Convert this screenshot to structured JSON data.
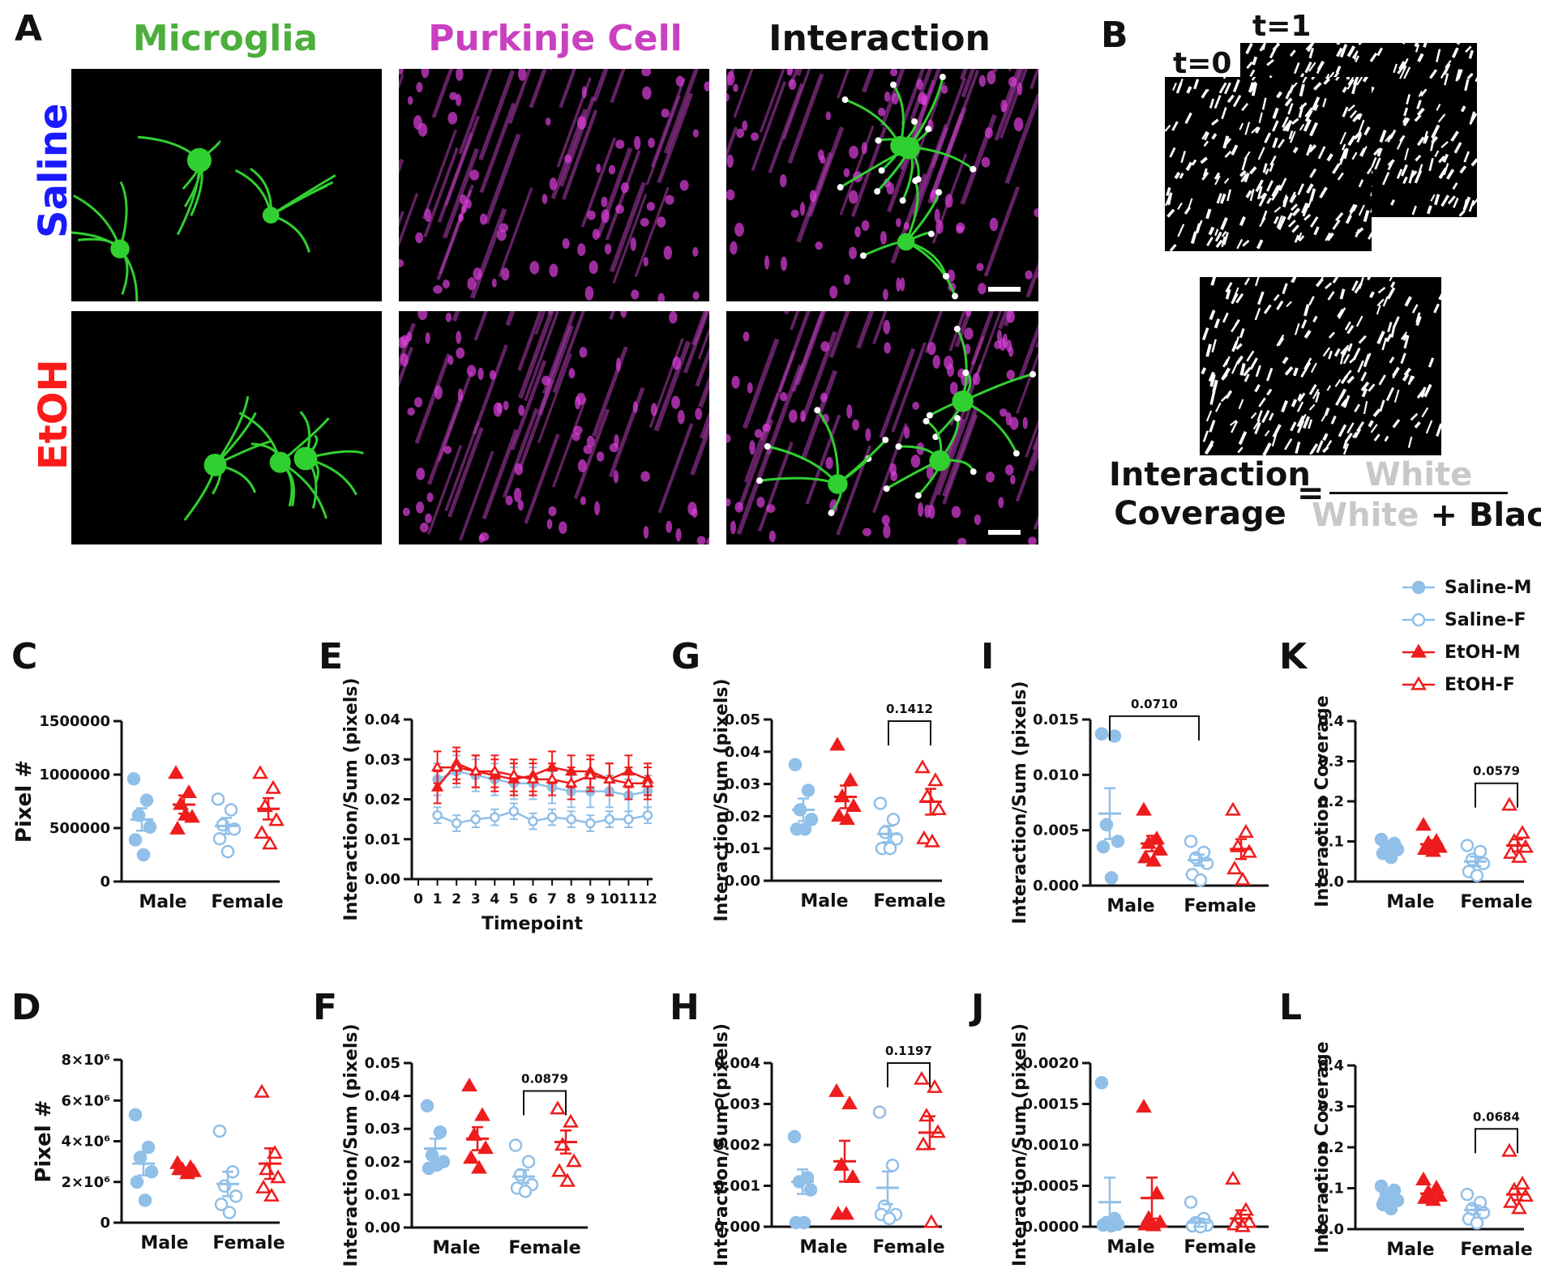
{
  "panel_labels": {
    "A": "A",
    "B": "B",
    "C": "C",
    "D": "D",
    "E": "E",
    "F": "F",
    "G": "G",
    "H": "H",
    "I": "I",
    "J": "J",
    "K": "K",
    "L": "L"
  },
  "imaging": {
    "column_titles": [
      "Microglia",
      "Purkinje Cell",
      "Interaction"
    ],
    "column_colors": [
      "#4caf3c",
      "#c940c0",
      "#111111"
    ],
    "row_labels": [
      "Saline",
      "EtOH"
    ],
    "row_colors": [
      "#1a1aff",
      "#ff1a1a"
    ]
  },
  "panel_b": {
    "t0": "t=0",
    "t1": "t=1",
    "formula": {
      "lhs_line1": "Interaction",
      "lhs_line2": "Coverage",
      "eq": "=",
      "num": "White",
      "den_white": "White",
      "den_plus": "+ Black"
    },
    "grey": "#c8c8c8"
  },
  "legend": [
    {
      "label": "Saline-M",
      "color": "#90bfe8",
      "marker": "circle",
      "filled": true
    },
    {
      "label": "Saline-F",
      "color": "#90bfe8",
      "marker": "circle",
      "filled": false
    },
    {
      "label": "EtOH-M",
      "color": "#ee1c1c",
      "marker": "triangle",
      "filled": true
    },
    {
      "label": "EtOH-F",
      "color": "#ee1c1c",
      "marker": "triangle",
      "filled": false
    }
  ],
  "chart_data": [
    {
      "id": "C",
      "type": "scatter",
      "ylabel": "Pixel #",
      "categories": [
        "Male",
        "Female"
      ],
      "ylim": [
        0,
        1500000
      ],
      "yticks": [
        "0",
        "500000",
        "1000000",
        "1500000"
      ],
      "ytick_values": [
        0,
        500000,
        1000000,
        1500000
      ],
      "groups": [
        {
          "series": "Saline-M",
          "cat": 0,
          "values": [
            960000,
            760000,
            620000,
            510000,
            390000,
            250000
          ],
          "mean": 580000,
          "sem": 105000
        },
        {
          "series": "EtOH-M",
          "cat": 0,
          "values": [
            1010000,
            830000,
            720000,
            600000,
            490000,
            620000
          ],
          "mean": 720000,
          "sem": 85000
        },
        {
          "series": "Saline-F",
          "cat": 1,
          "values": [
            770000,
            670000,
            530000,
            490000,
            400000,
            280000
          ],
          "mean": 520000,
          "sem": 75000
        },
        {
          "series": "EtOH-F",
          "cat": 1,
          "values": [
            1010000,
            870000,
            700000,
            570000,
            450000,
            350000
          ],
          "mean": 680000,
          "sem": 100000
        }
      ]
    },
    {
      "id": "D",
      "type": "scatter",
      "ylabel": "Pixel #",
      "categories": [
        "Male",
        "Female"
      ],
      "ylim": [
        0,
        8000000
      ],
      "yticks": [
        "0",
        "2×10⁶",
        "4×10⁶",
        "6×10⁶",
        "8×10⁶"
      ],
      "ytick_values": [
        0,
        2000000,
        4000000,
        6000000,
        8000000
      ],
      "groups": [
        {
          "series": "Saline-M",
          "cat": 0,
          "values": [
            5300000,
            3700000,
            3200000,
            2500000,
            2000000,
            1100000
          ],
          "mean": 2900000,
          "sem": 580000
        },
        {
          "series": "EtOH-M",
          "cat": 0,
          "values": [
            2900000,
            2700000,
            2600000,
            2500000,
            2600000,
            2400000
          ],
          "mean": 2600000,
          "sem": 100000
        },
        {
          "series": "Saline-F",
          "cat": 1,
          "values": [
            4500000,
            2500000,
            1800000,
            1300000,
            900000,
            500000
          ],
          "mean": 1900000,
          "sem": 600000
        },
        {
          "series": "EtOH-F",
          "cat": 1,
          "values": [
            6400000,
            3400000,
            2600000,
            2200000,
            1700000,
            1300000
          ],
          "mean": 2900000,
          "sem": 750000
        }
      ]
    },
    {
      "id": "E",
      "type": "line",
      "ylabel": "Interaction/Sum  (pixels)",
      "xlabel": "Timepoint",
      "ylim": [
        0,
        0.04
      ],
      "yticks": [
        "0.00",
        "0.01",
        "0.02",
        "0.03",
        "0.04"
      ],
      "ytick_values": [
        0,
        0.01,
        0.02,
        0.03,
        0.04
      ],
      "xticks": [
        "0",
        "1",
        "2",
        "3",
        "4",
        "5",
        "6",
        "7",
        "8",
        "9",
        "10",
        "11",
        "12"
      ],
      "x": [
        1,
        2,
        3,
        4,
        5,
        6,
        7,
        8,
        9,
        10,
        11,
        12
      ],
      "series": [
        {
          "name": "Saline-M",
          "values": [
            0.025,
            0.027,
            0.026,
            0.025,
            0.024,
            0.024,
            0.023,
            0.022,
            0.022,
            0.022,
            0.021,
            0.022
          ],
          "err": 0.004
        },
        {
          "name": "Saline-F",
          "values": [
            0.016,
            0.014,
            0.015,
            0.0155,
            0.017,
            0.0145,
            0.0155,
            0.015,
            0.014,
            0.015,
            0.015,
            0.016
          ],
          "err": 0.002
        },
        {
          "name": "EtOH-M",
          "values": [
            0.023,
            0.029,
            0.027,
            0.026,
            0.025,
            0.026,
            0.028,
            0.027,
            0.027,
            0.025,
            0.027,
            0.025
          ],
          "err": 0.004
        },
        {
          "name": "EtOH-F",
          "values": [
            0.028,
            0.028,
            0.027,
            0.027,
            0.026,
            0.025,
            0.025,
            0.024,
            0.026,
            0.025,
            0.024,
            0.024
          ],
          "err": 0.004
        }
      ]
    },
    {
      "id": "F",
      "type": "scatter",
      "ylabel": "Interaction/Sum  (pixels)",
      "categories": [
        "Male",
        "Female"
      ],
      "ylim": [
        0,
        0.05
      ],
      "yticks": [
        "0.00",
        "0.01",
        "0.02",
        "0.03",
        "0.04",
        "0.05"
      ],
      "ytick_values": [
        0,
        0.01,
        0.02,
        0.03,
        0.04,
        0.05
      ],
      "annotation": {
        "text": "0.0879",
        "cats": [
          1,
          1
        ],
        "y": 0.0415
      },
      "groups": [
        {
          "series": "Saline-M",
          "cat": 0,
          "values": [
            0.037,
            0.029,
            0.022,
            0.02,
            0.018,
            0.019
          ],
          "mean": 0.024,
          "sem": 0.003
        },
        {
          "series": "EtOH-M",
          "cat": 0,
          "values": [
            0.043,
            0.034,
            0.028,
            0.024,
            0.021,
            0.018
          ],
          "mean": 0.027,
          "sem": 0.0035
        },
        {
          "series": "Saline-F",
          "cat": 1,
          "values": [
            0.025,
            0.02,
            0.016,
            0.013,
            0.012,
            0.011
          ],
          "mean": 0.0155,
          "sem": 0.002
        },
        {
          "series": "EtOH-F",
          "cat": 1,
          "values": [
            0.036,
            0.032,
            0.025,
            0.02,
            0.017,
            0.014
          ],
          "mean": 0.026,
          "sem": 0.0035
        }
      ]
    },
    {
      "id": "G",
      "type": "scatter",
      "ylabel": "Interaction/Sum  (pixels)",
      "categories": [
        "Male",
        "Female"
      ],
      "ylim": [
        0,
        0.05
      ],
      "yticks": [
        "0.00",
        "0.01",
        "0.02",
        "0.03",
        "0.04",
        "0.05"
      ],
      "ytick_values": [
        0,
        0.01,
        0.02,
        0.03,
        0.04,
        0.05
      ],
      "annotation": {
        "text": "0.1412",
        "cats": [
          1,
          1
        ],
        "y": 0.0495
      },
      "groups": [
        {
          "series": "Saline-M",
          "cat": 0,
          "values": [
            0.036,
            0.028,
            0.022,
            0.019,
            0.016,
            0.016
          ],
          "mean": 0.022,
          "sem": 0.0035
        },
        {
          "series": "EtOH-M",
          "cat": 0,
          "values": [
            0.042,
            0.031,
            0.026,
            0.023,
            0.02,
            0.019
          ],
          "mean": 0.026,
          "sem": 0.0035
        },
        {
          "series": "Saline-F",
          "cat": 1,
          "values": [
            0.024,
            0.019,
            0.015,
            0.013,
            0.01,
            0.01
          ],
          "mean": 0.0145,
          "sem": 0.0025
        },
        {
          "series": "EtOH-F",
          "cat": 1,
          "values": [
            0.035,
            0.031,
            0.026,
            0.022,
            0.013,
            0.012
          ],
          "mean": 0.0245,
          "sem": 0.004
        }
      ]
    },
    {
      "id": "H",
      "type": "scatter",
      "ylabel": "Interaction/Sum  (pixels)",
      "categories": [
        "Male",
        "Female"
      ],
      "ylim": [
        0,
        0.004
      ],
      "yticks": [
        "0.000",
        "0.001",
        "0.002",
        "0.003",
        "0.004"
      ],
      "ytick_values": [
        0,
        0.001,
        0.002,
        0.003,
        0.004
      ],
      "annotation": {
        "text": "0.1197",
        "cats": [
          1,
          1
        ],
        "y": 0.004
      },
      "groups": [
        {
          "series": "Saline-M",
          "cat": 0,
          "values": [
            0.0022,
            0.0012,
            0.0011,
            0.0009,
            0.0001,
            0.0001
          ],
          "mean": 0.0011,
          "sem": 0.0003
        },
        {
          "series": "EtOH-M",
          "cat": 0,
          "values": [
            0.0033,
            0.003,
            0.0015,
            0.0012,
            0.0003,
            0.0003
          ],
          "mean": 0.0016,
          "sem": 0.0005
        },
        {
          "series": "Saline-F",
          "cat": 1,
          "values": [
            0.0028,
            0.0015,
            0.0005,
            0.0003,
            0.0003,
            0.0002
          ],
          "mean": 0.00095,
          "sem": 0.0004
        },
        {
          "series": "EtOH-F",
          "cat": 1,
          "values": [
            0.0036,
            0.0034,
            0.0027,
            0.0023,
            0.002,
            0.0001
          ],
          "mean": 0.0023,
          "sem": 0.0004
        }
      ]
    },
    {
      "id": "I",
      "type": "scatter",
      "ylabel": "Interaction/Sum  (pixels)",
      "categories": [
        "Male",
        "Female"
      ],
      "ylim": [
        0,
        0.015
      ],
      "yticks": [
        "0.000",
        "0.005",
        "0.010",
        "0.015"
      ],
      "ytick_values": [
        0,
        0.005,
        0.01,
        0.015
      ],
      "annotation": {
        "text": "0.0710",
        "cats": [
          0,
          1
        ],
        "y": 0.0153
      },
      "groups": [
        {
          "series": "Saline-M",
          "cat": 0,
          "values": [
            0.0137,
            0.0135,
            0.0055,
            0.004,
            0.0035,
            0.0007
          ],
          "mean": 0.0065,
          "sem": 0.0023
        },
        {
          "series": "EtOH-M",
          "cat": 0,
          "values": [
            0.0068,
            0.0042,
            0.0038,
            0.0032,
            0.0025,
            0.0022
          ],
          "mean": 0.0038,
          "sem": 0.0007
        },
        {
          "series": "Saline-F",
          "cat": 1,
          "values": [
            0.004,
            0.003,
            0.0025,
            0.002,
            0.001,
            0.0005
          ],
          "mean": 0.0023,
          "sem": 0.0005
        },
        {
          "series": "EtOH-F",
          "cat": 1,
          "values": [
            0.0068,
            0.0048,
            0.0035,
            0.003,
            0.0015,
            0.0005
          ],
          "mean": 0.0033,
          "sem": 0.0009
        }
      ]
    },
    {
      "id": "J",
      "type": "scatter",
      "ylabel": "Interaction/Sum  (pixels)",
      "categories": [
        "Male",
        "Female"
      ],
      "ylim": [
        0,
        0.002
      ],
      "yticks": [
        "0.0000",
        "0.0005",
        "0.0010",
        "0.0015",
        "0.0020"
      ],
      "ytick_values": [
        0,
        0.0005,
        0.001,
        0.0015,
        0.002
      ],
      "groups": [
        {
          "series": "Saline-M",
          "cat": 0,
          "values": [
            0.00176,
            0.0001,
            5e-05,
            3e-05,
            2e-05,
            1e-05
          ],
          "mean": 0.0003,
          "sem": 0.0003
        },
        {
          "series": "EtOH-M",
          "cat": 0,
          "values": [
            0.00146,
            0.0004,
            0.0001,
            5e-05,
            2e-05,
            1e-05
          ],
          "mean": 0.00035,
          "sem": 0.00025
        },
        {
          "series": "Saline-F",
          "cat": 1,
          "values": [
            0.0003,
            0.0001,
            5e-05,
            2e-05,
            1e-05,
            0.0
          ],
          "mean": 5e-05,
          "sem": 5e-05
        },
        {
          "series": "EtOH-F",
          "cat": 1,
          "values": [
            0.00058,
            0.0002,
            0.0001,
            5e-05,
            2e-05,
            0.0
          ],
          "mean": 0.0001,
          "sem": 0.0001
        }
      ]
    },
    {
      "id": "K",
      "type": "scatter",
      "ylabel": "Interaction Coverage",
      "categories": [
        "Male",
        "Female"
      ],
      "ylim": [
        0,
        0.4
      ],
      "yticks": [
        "0.0",
        "0.1",
        "0.2",
        "0.3",
        "0.4"
      ],
      "ytick_values": [
        0,
        0.1,
        0.2,
        0.3,
        0.4
      ],
      "annotation": {
        "text": "0.0579",
        "cats": [
          1,
          1
        ],
        "y": 0.245
      },
      "groups": [
        {
          "series": "Saline-M",
          "cat": 0,
          "values": [
            0.105,
            0.095,
            0.085,
            0.08,
            0.07,
            0.06
          ],
          "mean": 0.08,
          "sem": 0.008
        },
        {
          "series": "EtOH-M",
          "cat": 0,
          "values": [
            0.14,
            0.1,
            0.095,
            0.085,
            0.08,
            0.075
          ],
          "mean": 0.093,
          "sem": 0.01
        },
        {
          "series": "Saline-F",
          "cat": 1,
          "values": [
            0.09,
            0.075,
            0.055,
            0.045,
            0.025,
            0.015
          ],
          "mean": 0.05,
          "sem": 0.012
        },
        {
          "series": "EtOH-F",
          "cat": 1,
          "values": [
            0.19,
            0.12,
            0.1,
            0.085,
            0.07,
            0.06
          ],
          "mean": 0.09,
          "sem": 0.015
        }
      ]
    },
    {
      "id": "L",
      "type": "scatter",
      "ylabel": "Interaction Coverage",
      "categories": [
        "Male",
        "Female"
      ],
      "ylim": [
        0,
        0.4
      ],
      "yticks": [
        "0.0",
        "0.1",
        "0.2",
        "0.3",
        "0.4"
      ],
      "ytick_values": [
        0,
        0.1,
        0.2,
        0.3,
        0.4
      ],
      "annotation": {
        "text": "0.0684",
        "cats": [
          1,
          1
        ],
        "y": 0.245
      },
      "groups": [
        {
          "series": "Saline-M",
          "cat": 0,
          "values": [
            0.105,
            0.095,
            0.085,
            0.07,
            0.06,
            0.05
          ],
          "mean": 0.075,
          "sem": 0.009
        },
        {
          "series": "EtOH-M",
          "cat": 0,
          "values": [
            0.12,
            0.1,
            0.09,
            0.08,
            0.075,
            0.07
          ],
          "mean": 0.087,
          "sem": 0.008
        },
        {
          "series": "Saline-F",
          "cat": 1,
          "values": [
            0.085,
            0.065,
            0.05,
            0.04,
            0.025,
            0.015
          ],
          "mean": 0.047,
          "sem": 0.011
        },
        {
          "series": "EtOH-F",
          "cat": 1,
          "values": [
            0.19,
            0.11,
            0.095,
            0.08,
            0.065,
            0.05
          ],
          "mean": 0.085,
          "sem": 0.014
        }
      ]
    }
  ]
}
